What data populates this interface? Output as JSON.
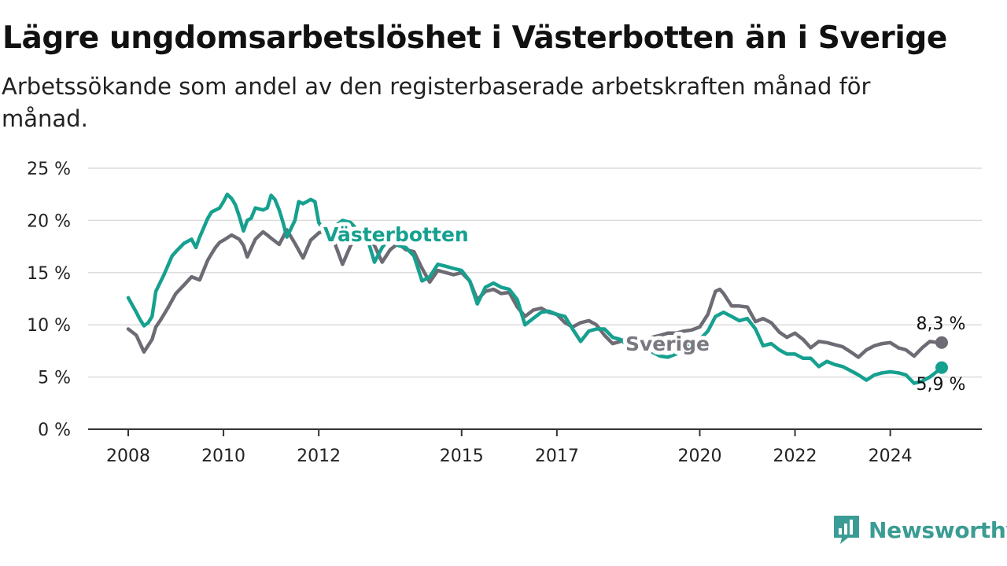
{
  "header": {
    "title": "Lägre ungdomsarbetslöshet i Västerbotten än i Sverige",
    "subtitle": "Arbetssökande som andel av den registerbaserade arbetskraften månad för månad."
  },
  "brand": {
    "name": "Newsworthy",
    "icon": "newsworthy-logo-icon",
    "color": "#3a9c94"
  },
  "chart_data": {
    "type": "line",
    "title": "Lägre ungdomsarbetslöshet i Västerbotten än i Sverige",
    "subtitle": "Arbetssökande som andel av den registerbaserade arbetskraften månad för månad.",
    "xlabel": "",
    "ylabel": "",
    "xlim": [
      2008,
      2025.25
    ],
    "ylim": [
      0,
      25
    ],
    "y_ticks": [
      0,
      5,
      10,
      15,
      20,
      25
    ],
    "y_tick_labels": [
      "0 %",
      "5 %",
      "10 %",
      "15 %",
      "20 %",
      "25 %"
    ],
    "x_ticks": [
      2008,
      2010,
      2012,
      2015,
      2017,
      2020,
      2022,
      2024
    ],
    "x_tick_labels": [
      "2008",
      "2010",
      "2012",
      "2015",
      "2017",
      "2020",
      "2022",
      "2024"
    ],
    "grid": "horizontal",
    "legend": "none (inline labels)",
    "series": [
      {
        "name": "Sverige",
        "color": "#6e6b74",
        "label_color": "#7a7880",
        "end_label": "8,3 %",
        "x": [
          2008.0,
          2008.17,
          2008.33,
          2008.5,
          2008.58,
          2008.67,
          2008.83,
          2009.0,
          2009.17,
          2009.33,
          2009.5,
          2009.67,
          2009.75,
          2009.83,
          2009.92,
          2010.0,
          2010.17,
          2010.33,
          2010.42,
          2010.5,
          2010.67,
          2010.83,
          2010.92,
          2011.0,
          2011.17,
          2011.33,
          2011.5,
          2011.67,
          2011.83,
          2012.0,
          2012.17,
          2012.33,
          2012.5,
          2012.67,
          2012.83,
          2013.0,
          2013.17,
          2013.33,
          2013.5,
          2013.67,
          2013.83,
          2014.0,
          2014.17,
          2014.33,
          2014.5,
          2014.67,
          2014.83,
          2015.0,
          2015.17,
          2015.33,
          2015.5,
          2015.67,
          2015.83,
          2016.0,
          2016.17,
          2016.33,
          2016.5,
          2016.67,
          2016.83,
          2017.0,
          2017.17,
          2017.33,
          2017.5,
          2017.67,
          2017.83,
          2018.0,
          2018.17,
          2018.33,
          2018.5,
          2018.67,
          2018.83,
          2019.0,
          2019.17,
          2019.33,
          2019.5,
          2019.67,
          2019.83,
          2020.0,
          2020.17,
          2020.33,
          2020.42,
          2020.5,
          2020.67,
          2020.83,
          2021.0,
          2021.17,
          2021.33,
          2021.5,
          2021.67,
          2021.83,
          2022.0,
          2022.17,
          2022.33,
          2022.5,
          2022.67,
          2022.83,
          2023.0,
          2023.17,
          2023.33,
          2023.5,
          2023.67,
          2023.83,
          2024.0,
          2024.17,
          2024.33,
          2024.5,
          2024.67,
          2024.83,
          2025.0,
          2025.08
        ],
        "values": [
          9.6,
          9.0,
          7.4,
          8.6,
          9.8,
          10.4,
          11.6,
          13.0,
          13.8,
          14.6,
          14.3,
          16.2,
          16.8,
          17.4,
          17.9,
          18.1,
          18.6,
          18.2,
          17.6,
          16.5,
          18.2,
          18.9,
          18.6,
          18.3,
          17.7,
          19.1,
          17.8,
          16.4,
          18.1,
          18.8,
          19.1,
          17.9,
          15.8,
          17.6,
          18.6,
          18.8,
          17.6,
          16.0,
          17.2,
          17.8,
          17.2,
          17.0,
          15.4,
          14.1,
          15.2,
          15.0,
          14.8,
          15.0,
          14.2,
          12.4,
          13.2,
          13.4,
          13.0,
          13.1,
          11.7,
          10.8,
          11.4,
          11.6,
          11.2,
          11.0,
          10.2,
          9.8,
          10.2,
          10.4,
          10.0,
          9.0,
          8.2,
          8.4,
          8.8,
          8.5,
          8.4,
          8.8,
          9.0,
          9.2,
          9.2,
          9.4,
          9.5,
          9.8,
          11.0,
          13.2,
          13.4,
          13.0,
          11.8,
          11.8,
          11.7,
          10.3,
          10.6,
          10.2,
          9.3,
          8.8,
          9.2,
          8.6,
          7.8,
          8.4,
          8.3,
          8.1,
          7.9,
          7.4,
          6.9,
          7.6,
          8.0,
          8.2,
          8.3,
          7.8,
          7.6,
          7.0,
          7.8,
          8.4,
          8.3,
          8.3
        ]
      },
      {
        "name": "Västerbotten",
        "color": "#16a08f",
        "label_color": "#16a08f",
        "end_label": "5,9 %",
        "x": [
          2008.0,
          2008.17,
          2008.25,
          2008.33,
          2008.42,
          2008.5,
          2008.58,
          2008.75,
          2008.92,
          2009.0,
          2009.17,
          2009.33,
          2009.42,
          2009.5,
          2009.67,
          2009.75,
          2009.92,
          2010.0,
          2010.08,
          2010.17,
          2010.25,
          2010.33,
          2010.42,
          2010.5,
          2010.58,
          2010.67,
          2010.83,
          2010.92,
          2011.0,
          2011.08,
          2011.17,
          2011.25,
          2011.33,
          2011.5,
          2011.58,
          2011.67,
          2011.83,
          2011.92,
          2012.0,
          2012.08,
          2012.17,
          2012.33,
          2012.5,
          2012.67,
          2012.83,
          2013.0,
          2013.17,
          2013.33,
          2013.5,
          2013.67,
          2013.83,
          2014.0,
          2014.17,
          2014.33,
          2014.5,
          2014.67,
          2014.83,
          2015.0,
          2015.17,
          2015.33,
          2015.5,
          2015.67,
          2015.83,
          2016.0,
          2016.17,
          2016.33,
          2016.5,
          2016.67,
          2016.83,
          2017.0,
          2017.17,
          2017.33,
          2017.5,
          2017.67,
          2017.83,
          2018.0,
          2018.17,
          2018.33,
          2018.5,
          2018.67,
          2018.83,
          2019.0,
          2019.17,
          2019.33,
          2019.5,
          2019.67,
          2019.83,
          2020.0,
          2020.17,
          2020.33,
          2020.5,
          2020.67,
          2020.83,
          2021.0,
          2021.17,
          2021.33,
          2021.5,
          2021.67,
          2021.83,
          2022.0,
          2022.17,
          2022.33,
          2022.5,
          2022.67,
          2022.83,
          2023.0,
          2023.17,
          2023.33,
          2023.5,
          2023.67,
          2023.83,
          2024.0,
          2024.17,
          2024.33,
          2024.5,
          2024.67,
          2024.83,
          2025.0,
          2025.08
        ],
        "values": [
          12.6,
          11.2,
          10.5,
          9.9,
          10.2,
          10.8,
          13.2,
          14.8,
          16.6,
          17.0,
          17.8,
          18.2,
          17.4,
          18.4,
          20.2,
          20.8,
          21.2,
          21.8,
          22.5,
          22.1,
          21.5,
          20.4,
          19.0,
          20.0,
          20.2,
          21.2,
          21.0,
          21.2,
          22.4,
          22.0,
          21.0,
          19.8,
          18.4,
          20.0,
          21.8,
          21.6,
          22.0,
          21.8,
          19.8,
          19.2,
          18.4,
          19.4,
          20.0,
          19.8,
          19.0,
          18.6,
          16.0,
          17.4,
          18.4,
          17.6,
          17.4,
          16.6,
          14.2,
          14.6,
          15.8,
          15.6,
          15.4,
          15.2,
          14.2,
          12.0,
          13.6,
          14.0,
          13.6,
          13.4,
          12.4,
          10.0,
          10.6,
          11.2,
          11.3,
          11.0,
          10.8,
          9.6,
          8.4,
          9.4,
          9.6,
          9.6,
          8.8,
          8.6,
          8.0,
          7.8,
          7.6,
          7.4,
          7.0,
          6.9,
          7.2,
          7.8,
          8.2,
          8.6,
          9.4,
          10.8,
          11.2,
          10.8,
          10.4,
          10.6,
          9.6,
          8.0,
          8.2,
          7.6,
          7.2,
          7.2,
          6.8,
          6.8,
          6.0,
          6.5,
          6.2,
          6.0,
          5.6,
          5.2,
          4.7,
          5.2,
          5.4,
          5.5,
          5.4,
          5.2,
          4.4,
          4.6,
          5.0,
          5.6,
          5.9
        ]
      }
    ]
  }
}
